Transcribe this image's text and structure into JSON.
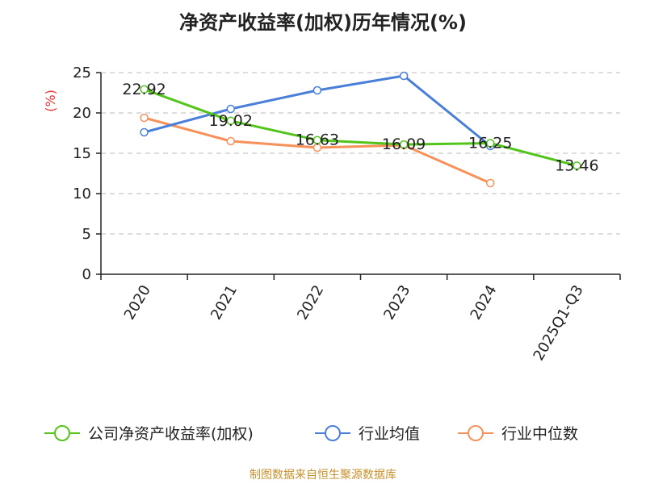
{
  "chart_data": {
    "type": "line",
    "title": "净资产收益率(加权)历年情况(%)",
    "ylabel": "(%)",
    "xlabel": "",
    "categories": [
      "2020",
      "2021",
      "2022",
      "2023",
      "2024",
      "2025Q1-Q3"
    ],
    "ylim": [
      0,
      25
    ],
    "yticks": [
      0,
      5,
      10,
      15,
      20,
      25
    ],
    "grid": true,
    "legend_position": "bottom",
    "series": [
      {
        "name": "公司净资产收益率(加权)",
        "color": "#52c41a",
        "values": [
          22.92,
          19.02,
          16.63,
          16.09,
          16.25,
          13.46
        ],
        "labels": [
          "22.92",
          "19.02",
          "16.63",
          "16.09",
          "16.25",
          "13.46"
        ]
      },
      {
        "name": "行业均值",
        "color": "#4a7fd9",
        "values": [
          17.6,
          20.5,
          22.8,
          24.6,
          15.9,
          null
        ]
      },
      {
        "name": "行业中位数",
        "color": "#f7915a",
        "values": [
          19.4,
          16.5,
          15.7,
          16.0,
          11.3,
          null
        ]
      }
    ]
  },
  "footer": {
    "source": "制图数据来自恒生聚源数据库"
  }
}
